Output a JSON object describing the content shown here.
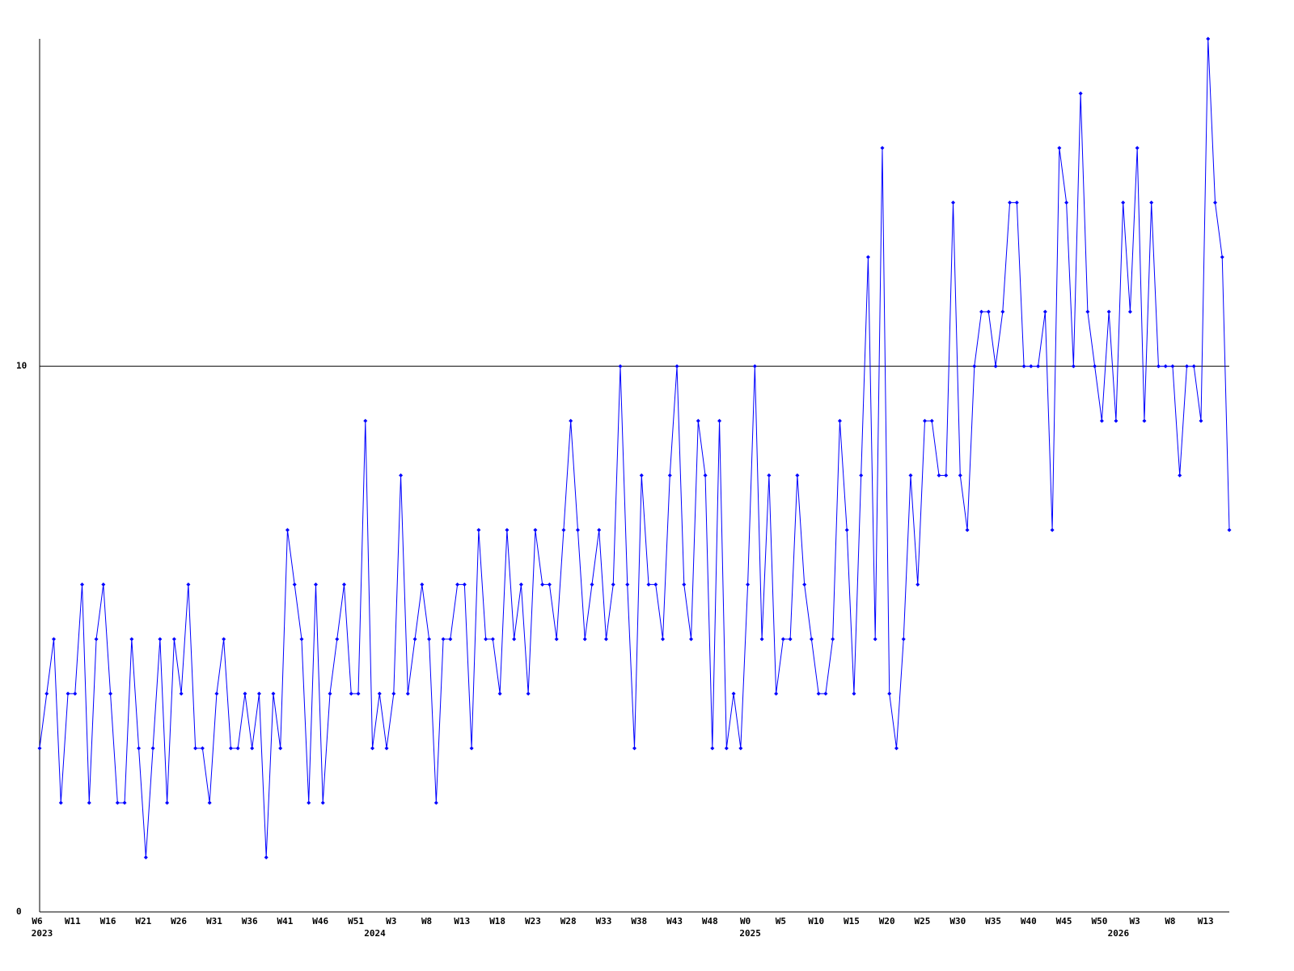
{
  "chart_data": {
    "type": "line",
    "color": "#0000ff",
    "grid": true,
    "ylim": [
      0,
      16
    ],
    "yticks": [
      0,
      10
    ],
    "categories": [
      "W6",
      null,
      null,
      null,
      null,
      "W11",
      null,
      null,
      null,
      null,
      "W16",
      null,
      null,
      null,
      null,
      "W21",
      null,
      null,
      null,
      null,
      "W26",
      null,
      null,
      null,
      null,
      "W31",
      null,
      null,
      null,
      null,
      "W36",
      null,
      null,
      null,
      null,
      "W41",
      null,
      null,
      null,
      null,
      "W46",
      null,
      null,
      null,
      null,
      "W51",
      null,
      null,
      null,
      null,
      "W3",
      null,
      null,
      null,
      null,
      "W8",
      null,
      null,
      null,
      null,
      "W13",
      null,
      null,
      null,
      null,
      "W18",
      null,
      null,
      null,
      null,
      "W23",
      null,
      null,
      null,
      null,
      "W28",
      null,
      null,
      null,
      null,
      "W33",
      null,
      null,
      null,
      null,
      "W38",
      null,
      null,
      null,
      null,
      "W43",
      null,
      null,
      null,
      null,
      "W48",
      null,
      null,
      null,
      null,
      "W0",
      null,
      null,
      null,
      null,
      "W5",
      null,
      null,
      null,
      null,
      "W10",
      null,
      null,
      null,
      null,
      "W15",
      null,
      null,
      null,
      null,
      "W20",
      null,
      null,
      null,
      null,
      "W25",
      null,
      null,
      null,
      null,
      "W30",
      null,
      null,
      null,
      null,
      "W35",
      null,
      null,
      null,
      null,
      "W40",
      null,
      null,
      null,
      null,
      "W45",
      null,
      null,
      null,
      null,
      "W50",
      null,
      null,
      null,
      null,
      "W3",
      null,
      null,
      null,
      null,
      "W8",
      null,
      null,
      null,
      null,
      "W13",
      null,
      null,
      null
    ],
    "year_labels": [
      "2023",
      null,
      null,
      null,
      null,
      null,
      null,
      null,
      null,
      null,
      null,
      null,
      null,
      null,
      null,
      null,
      null,
      null,
      null,
      null,
      null,
      null,
      null,
      null,
      null,
      null,
      null,
      null,
      null,
      null,
      null,
      null,
      null,
      null,
      null,
      null,
      null,
      null,
      null,
      null,
      null,
      null,
      null,
      null,
      null,
      null,
      null,
      "2024",
      null,
      null,
      null,
      null,
      null,
      null,
      null,
      null,
      null,
      null,
      null,
      null,
      null,
      null,
      null,
      null,
      null,
      null,
      null,
      null,
      null,
      null,
      null,
      null,
      null,
      null,
      null,
      null,
      null,
      null,
      null,
      null,
      null,
      null,
      null,
      null,
      null,
      null,
      null,
      null,
      null,
      null,
      null,
      null,
      null,
      null,
      null,
      null,
      null,
      null,
      null,
      null,
      "2025",
      null,
      null,
      null,
      null,
      null,
      null,
      null,
      null,
      null,
      null,
      null,
      null,
      null,
      null,
      null,
      null,
      null,
      null,
      null,
      null,
      null,
      null,
      null,
      null,
      null,
      null,
      null,
      null,
      null,
      null,
      null,
      null,
      null,
      null,
      null,
      null,
      null,
      null,
      null,
      null,
      null,
      null,
      null,
      null,
      null,
      null,
      null,
      null,
      null,
      null,
      null,
      "2026",
      null,
      null,
      null,
      null,
      null,
      null,
      null,
      null,
      null,
      null,
      null,
      null,
      null,
      null,
      null,
      null
    ],
    "values": [
      3,
      4,
      5,
      2,
      4,
      4,
      6,
      2,
      5,
      6,
      4,
      2,
      2,
      5,
      3,
      1,
      3,
      5,
      2,
      5,
      4,
      6,
      3,
      3,
      2,
      4,
      5,
      3,
      3,
      4,
      3,
      4,
      1,
      4,
      3,
      7,
      6,
      5,
      2,
      6,
      2,
      4,
      5,
      6,
      4,
      4,
      9,
      3,
      4,
      3,
      4,
      8,
      4,
      5,
      6,
      5,
      2,
      5,
      5,
      6,
      6,
      3,
      7,
      5,
      5,
      4,
      7,
      5,
      6,
      4,
      7,
      6,
      6,
      5,
      7,
      9,
      7,
      5,
      6,
      7,
      5,
      6,
      10,
      6,
      3,
      8,
      6,
      6,
      5,
      8,
      10,
      6,
      5,
      9,
      8,
      3,
      9,
      3,
      4,
      3,
      6,
      10,
      5,
      8,
      4,
      5,
      5,
      8,
      6,
      5,
      4,
      4,
      5,
      9,
      7,
      4,
      8,
      12,
      5,
      14,
      4,
      3,
      5,
      8,
      6,
      9,
      9,
      8,
      8,
      13,
      8,
      7,
      10,
      11,
      11,
      10,
      11,
      13,
      13,
      10,
      10,
      10,
      11,
      7,
      14,
      13,
      10,
      15,
      11,
      10,
      9,
      11,
      9,
      13,
      11,
      14,
      9,
      13,
      10,
      10,
      10,
      8,
      10,
      10,
      9,
      16,
      13,
      12,
      7
    ]
  }
}
